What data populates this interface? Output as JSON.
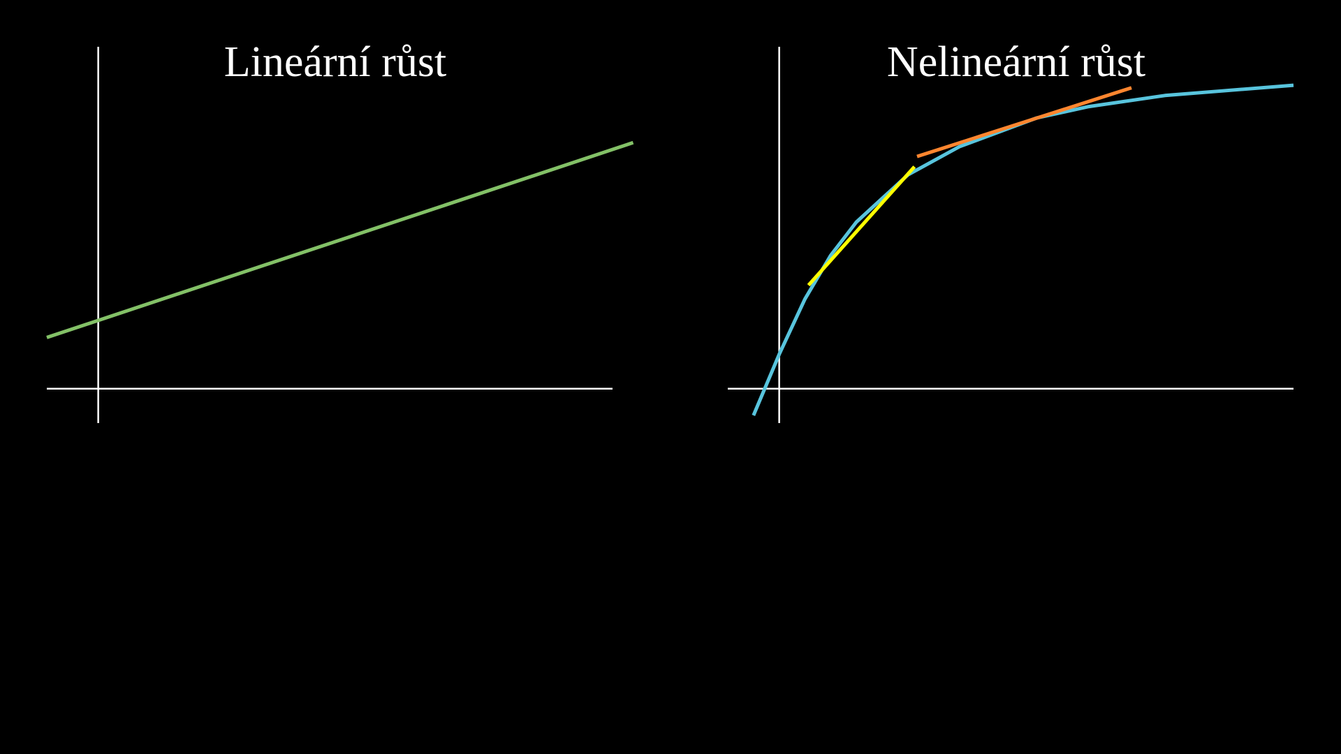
{
  "chart_data": [
    {
      "type": "line",
      "title": "Lineární růst",
      "xlim": [
        -1,
        10
      ],
      "ylim": [
        -0.67,
        6.67
      ],
      "series": [
        {
          "color": "#83c167",
          "x": [
            -1,
            10.4
          ],
          "values": [
            1,
            4.8
          ]
        }
      ]
    },
    {
      "type": "line",
      "title": "Nelineární růst",
      "xlim": [
        -1,
        10
      ],
      "ylim": [
        -0.67,
        6.67
      ],
      "series": [
        {
          "color": "#58c4dd",
          "x": [
            -0.5,
            0,
            0.5,
            1,
            1.5,
            2.5,
            3.5,
            5,
            6,
            7.5,
            10
          ],
          "values": [
            -0.52,
            0.67,
            1.75,
            2.6,
            3.25,
            4.17,
            4.72,
            5.28,
            5.5,
            5.72,
            5.92
          ]
        },
        {
          "color": "#ffff00",
          "x": [
            0.57,
            2.63
          ],
          "values": [
            2.02,
            4.33
          ]
        },
        {
          "color": "#ff862f",
          "x": [
            2.68,
            6.85
          ],
          "values": [
            4.53,
            5.87
          ]
        }
      ]
    }
  ]
}
